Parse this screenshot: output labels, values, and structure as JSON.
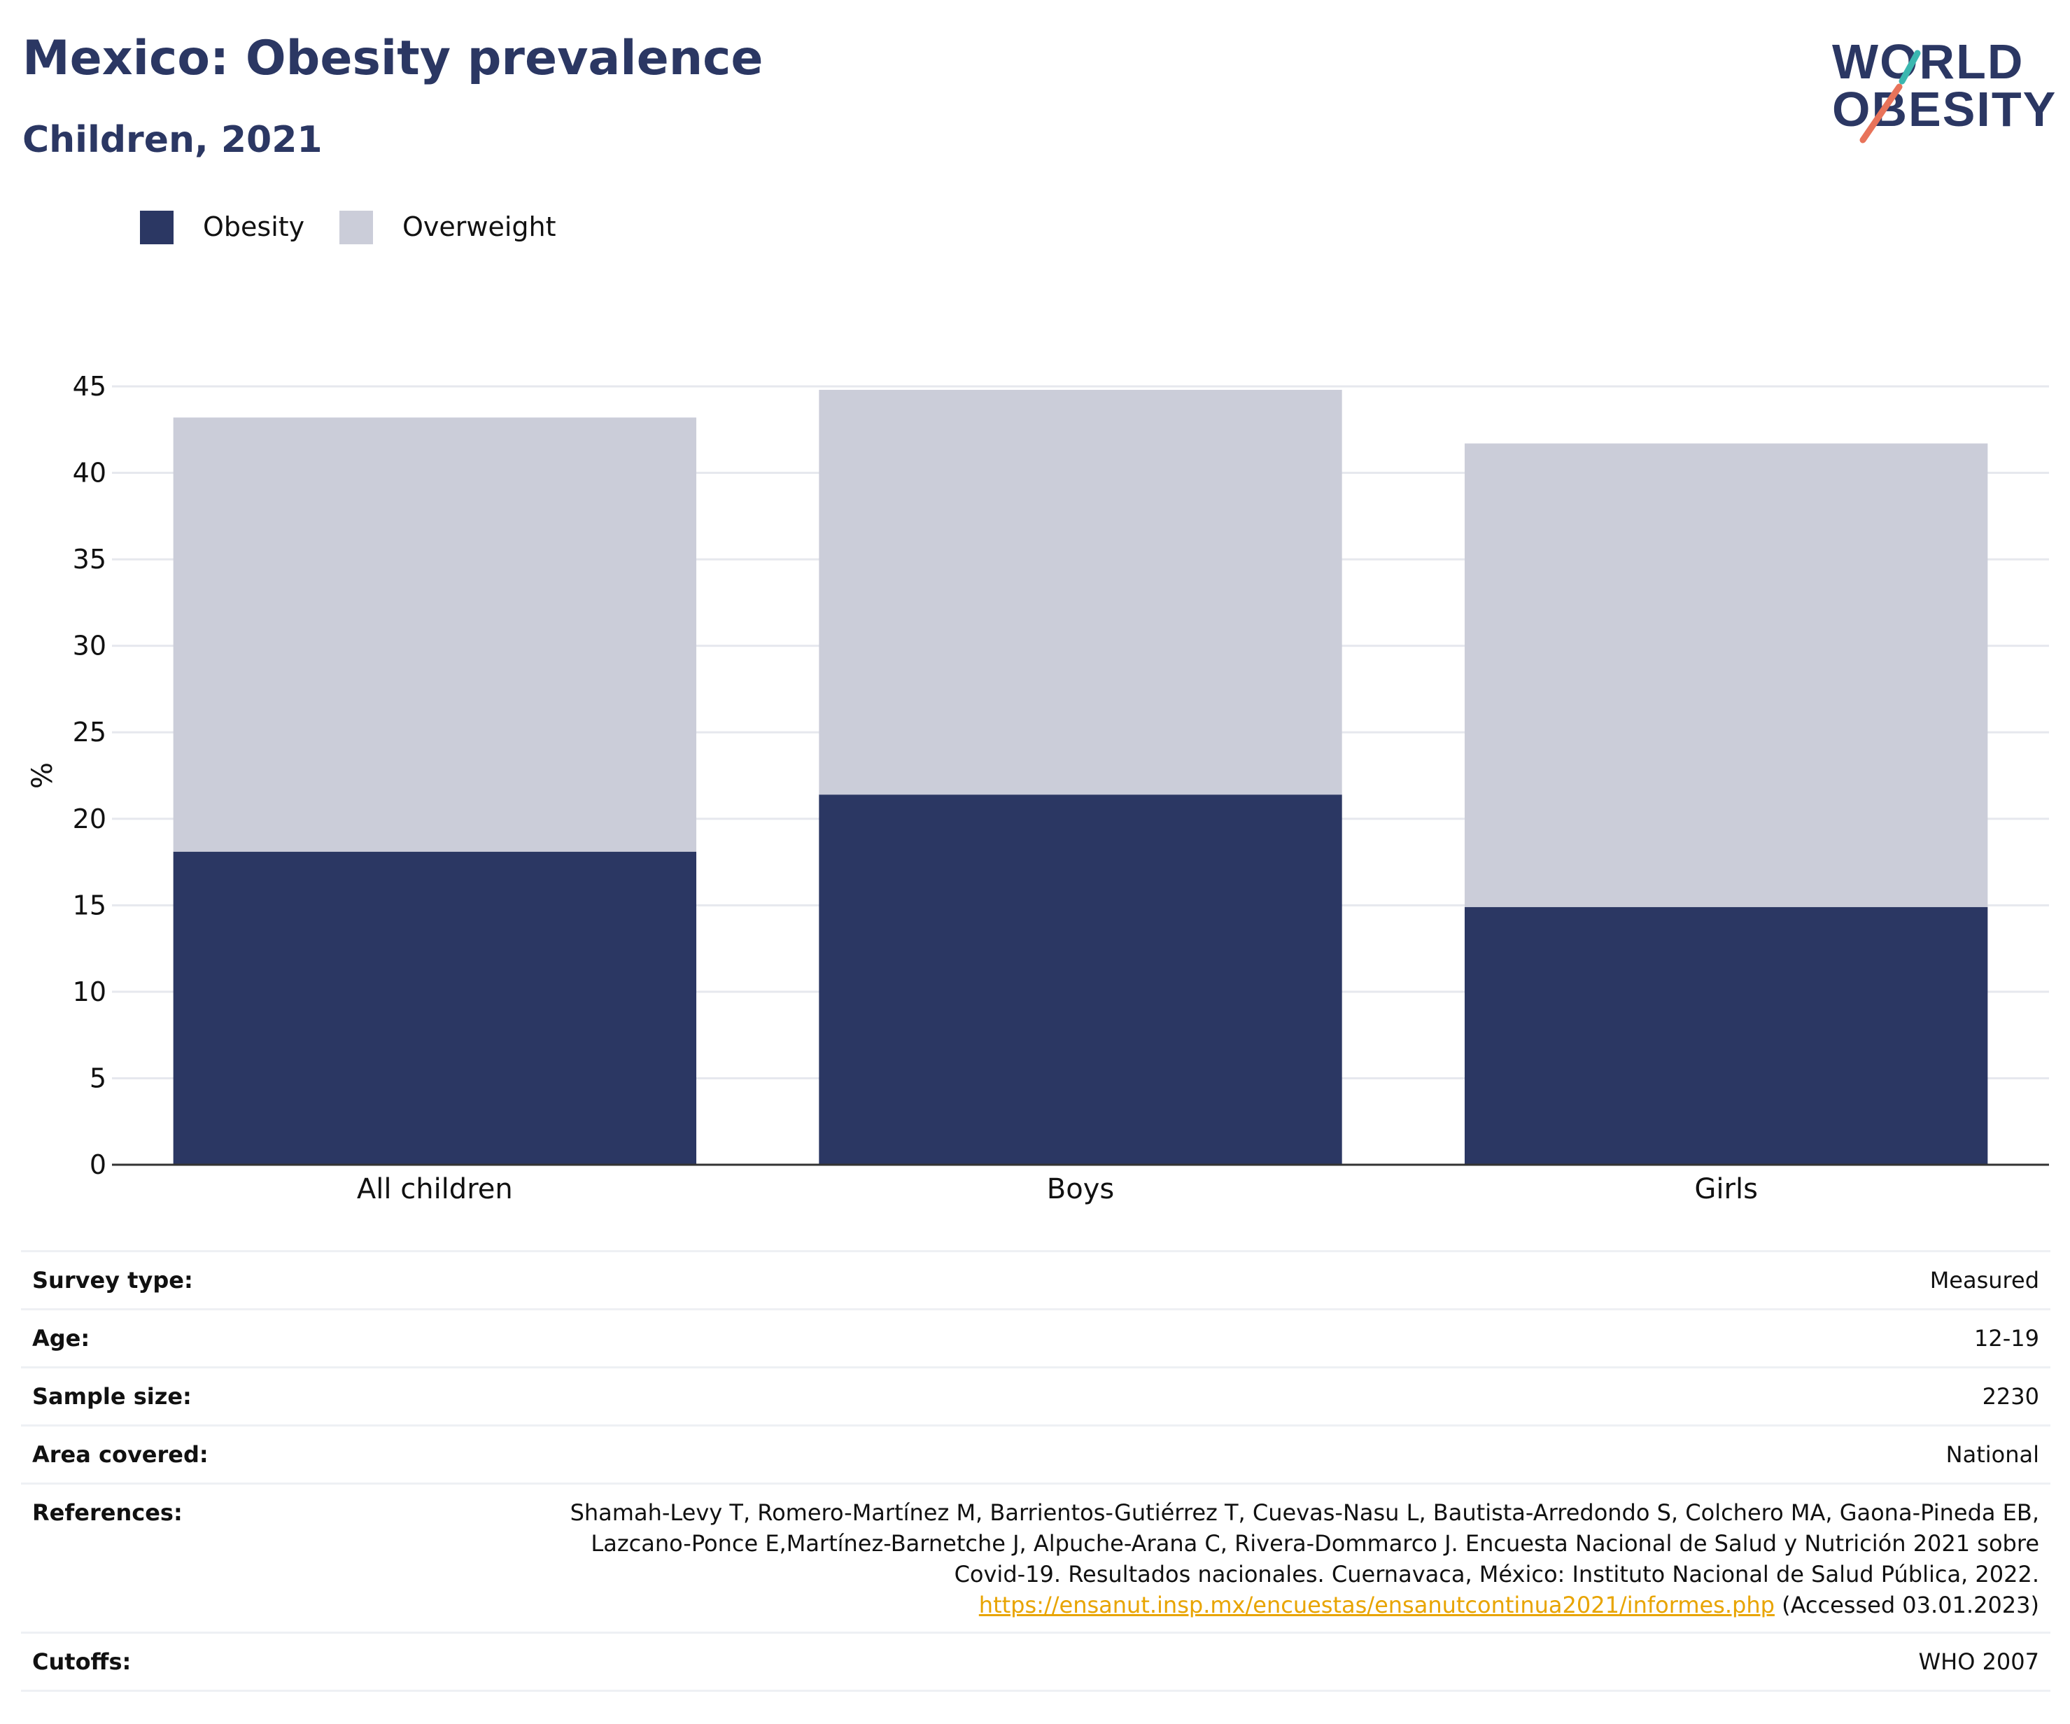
{
  "header": {
    "title": "Mexico: Obesity prevalence",
    "subtitle": "Children, 2021",
    "logo_line1": "WORLD",
    "logo_line2": "OBESITY"
  },
  "colors": {
    "obesity": "#2b3763",
    "overweight": "#cbcdd9",
    "title": "#2b3763",
    "link": "#e8a400",
    "grid": "#e6e8ee",
    "logo_teal": "#3bb7b0",
    "logo_coral": "#e8735a"
  },
  "legend": {
    "items": [
      {
        "label": "Obesity",
        "color": "#2b3763"
      },
      {
        "label": "Overweight",
        "color": "#cbcdd9"
      }
    ]
  },
  "chart_data": {
    "type": "bar",
    "stacked": true,
    "categories": [
      "All children",
      "Boys",
      "Girls"
    ],
    "series": [
      {
        "name": "Obesity",
        "values": [
          18.1,
          21.4,
          14.9
        ]
      },
      {
        "name": "Overweight",
        "values": [
          25.1,
          23.4,
          26.8
        ]
      }
    ],
    "ylabel": "%",
    "ylim": [
      0,
      45
    ],
    "yticks": [
      0,
      5,
      10,
      15,
      20,
      25,
      30,
      35,
      40,
      45
    ],
    "grid": true,
    "legend_position": "top-left"
  },
  "info": {
    "rows": [
      {
        "label": "Survey type:",
        "value": "Measured"
      },
      {
        "label": "Age:",
        "value": "12-19"
      },
      {
        "label": "Sample size:",
        "value": "2230"
      },
      {
        "label": "Area covered:",
        "value": "National"
      }
    ],
    "references": {
      "label": "References:",
      "text_line1": "Shamah-Levy T, Romero-Martínez M, Barrientos-Gutiérrez T, Cuevas-Nasu L, Bautista-Arredondo S, Colchero MA, Gaona-Pineda EB,",
      "text_line2": "Lazcano-Ponce E,Martínez-Barnetche J, Alpuche-Arana C, Rivera-Dommarco J. Encuesta Nacional de Salud y Nutrición 2021 sobre",
      "text_line3": "Covid-19. Resultados nacionales. Cuernavaca, México: Instituto Nacional de Salud Pública, 2022.",
      "link": "https://ensanut.insp.mx/encuestas/ensanutcontinua2021/informes.php",
      "accessed": "(Accessed 03.01.2023)"
    },
    "cutoffs": {
      "label": "Cutoffs:",
      "value": "WHO 2007"
    }
  }
}
